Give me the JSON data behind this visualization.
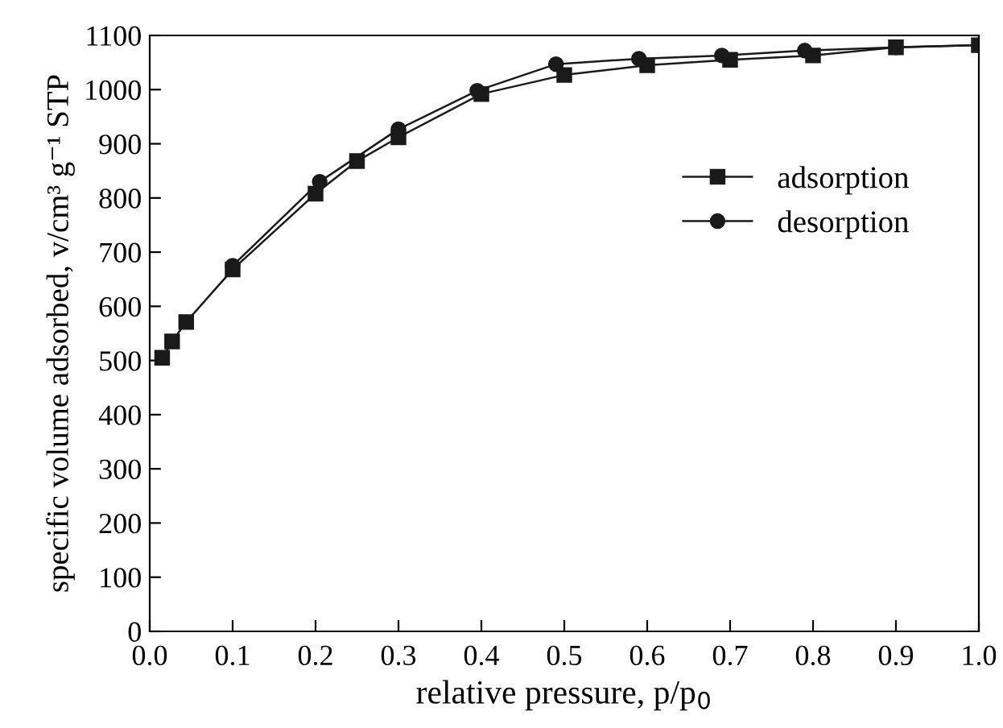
{
  "chart_data": {
    "type": "line",
    "xlabel": "relative pressure, p/p$_{0}$",
    "ylabel": "specific volume adsorbed, v/cm³ g⁻¹ STP",
    "xlim": [
      0.0,
      1.0
    ],
    "ylim": [
      0,
      1100
    ],
    "xticks": [
      {
        "value": 0,
        "label": "0.0"
      },
      0.1,
      0.2,
      0.3,
      0.4,
      0.5,
      0.6,
      0.7,
      0.8,
      0.9,
      {
        "value": 1,
        "label": "1.0"
      }
    ],
    "yticks": [
      0,
      100,
      200,
      300,
      400,
      500,
      600,
      700,
      800,
      900,
      1000,
      1100
    ],
    "grid": false,
    "legend": "right",
    "line_style": "solid",
    "series": [
      {
        "name": "adsorption",
        "color": "#1a1a1a",
        "marker": "square",
        "x": [
          0.015,
          0.027,
          0.044,
          0.1,
          0.2,
          0.25,
          0.3,
          0.4,
          0.5,
          0.6,
          0.7,
          0.8,
          0.9,
          1.0
        ],
        "values": [
          505,
          535,
          571,
          668,
          808,
          868,
          912,
          992,
          1027,
          1045,
          1055,
          1063,
          1078,
          1082
        ]
      },
      {
        "name": "desorption",
        "color": "#1a1a1a",
        "marker": "circle",
        "x": [
          1.0,
          0.9,
          0.79,
          0.69,
          0.59,
          0.49,
          0.395,
          0.3,
          0.205,
          0.1
        ],
        "values": [
          1082,
          1078,
          1072,
          1063,
          1057,
          1047,
          998,
          927,
          830,
          675
        ]
      }
    ]
  }
}
